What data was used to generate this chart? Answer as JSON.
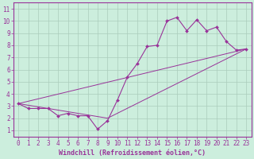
{
  "xlabel": "Windchill (Refroidissement éolien,°C)",
  "background_color": "#cceedd",
  "grid_color": "#aaccbb",
  "line_color": "#993399",
  "xlim": [
    -0.5,
    23.5
  ],
  "ylim": [
    0.5,
    11.5
  ],
  "xticks": [
    0,
    1,
    2,
    3,
    4,
    5,
    6,
    7,
    8,
    9,
    10,
    11,
    12,
    13,
    14,
    15,
    16,
    17,
    18,
    19,
    20,
    21,
    22,
    23
  ],
  "yticks": [
    1,
    2,
    3,
    4,
    5,
    6,
    7,
    8,
    9,
    10,
    11
  ],
  "line1_x": [
    0,
    1,
    2,
    3,
    4,
    5,
    6,
    7,
    8,
    9,
    10,
    11,
    12,
    13,
    14,
    15,
    16,
    17,
    18,
    19,
    20,
    21,
    22,
    23
  ],
  "line1_y": [
    3.2,
    2.8,
    2.8,
    2.8,
    2.2,
    2.4,
    2.2,
    2.2,
    1.1,
    1.8,
    3.5,
    5.4,
    6.5,
    7.9,
    8.0,
    10.0,
    10.3,
    9.2,
    10.1,
    9.2,
    9.5,
    8.3,
    7.6,
    7.7
  ],
  "line2_x": [
    0,
    23
  ],
  "line2_y": [
    3.2,
    7.7
  ],
  "line3_x": [
    0,
    9,
    23
  ],
  "line3_y": [
    3.2,
    2.0,
    7.7
  ],
  "tick_fontsize": 5.5,
  "label_fontsize": 6.0
}
